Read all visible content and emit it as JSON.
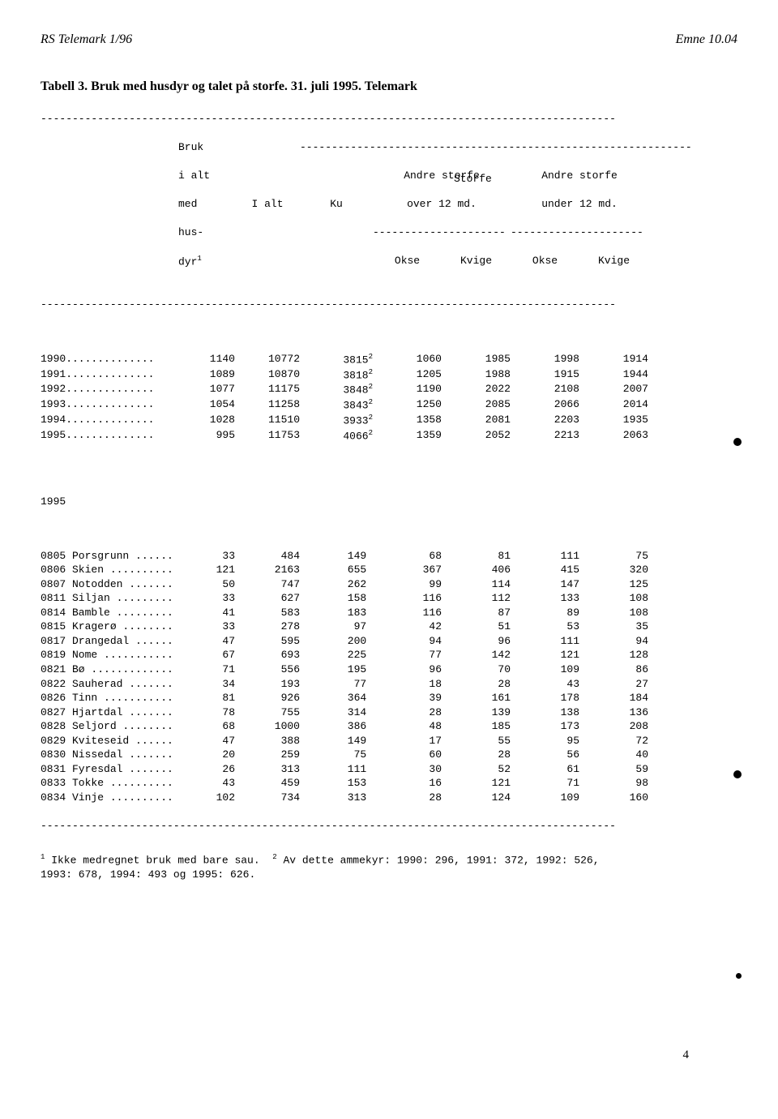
{
  "header": {
    "left": "RS Telemark 1/96",
    "right": "Emne 10.04"
  },
  "title": "Tabell 3. Bruk med husdyr og talet på storfe. 31. juli 1995. Telemark",
  "colhead": {
    "bruk": "Bruk\ni alt\nmed\nhus-\ndyr",
    "ialt": "I alt",
    "ku": "Ku",
    "storfe": "Storfe",
    "over": "Andre storfe\nover 12 md.",
    "under": "Andre storfe\nunder 12 md.",
    "okse": "Okse",
    "kvige": "Kvige",
    "sup1": "1"
  },
  "years": [
    {
      "label": "1990",
      "bruk": "1140",
      "ialt": "10772",
      "ku": "3815",
      "sup": "2",
      "okse1": "1060",
      "kvige1": "1985",
      "okse2": "1998",
      "kvige2": "1914"
    },
    {
      "label": "1991",
      "bruk": "1089",
      "ialt": "10870",
      "ku": "3818",
      "sup": "2",
      "okse1": "1205",
      "kvige1": "1988",
      "okse2": "1915",
      "kvige2": "1944"
    },
    {
      "label": "1992",
      "bruk": "1077",
      "ialt": "11175",
      "ku": "3848",
      "sup": "2",
      "okse1": "1190",
      "kvige1": "2022",
      "okse2": "2108",
      "kvige2": "2007"
    },
    {
      "label": "1993",
      "bruk": "1054",
      "ialt": "11258",
      "ku": "3843",
      "sup": "2",
      "okse1": "1250",
      "kvige1": "2085",
      "okse2": "2066",
      "kvige2": "2014"
    },
    {
      "label": "1994",
      "bruk": "1028",
      "ialt": "11510",
      "ku": "3933",
      "sup": "2",
      "okse1": "1358",
      "kvige1": "2081",
      "okse2": "2203",
      "kvige2": "1935"
    },
    {
      "label": "1995",
      "bruk": "995",
      "ialt": "11753",
      "ku": "4066",
      "sup": "2",
      "okse1": "1359",
      "kvige1": "2052",
      "okse2": "2213",
      "kvige2": "2063"
    }
  ],
  "section_year": "1995",
  "rows": [
    {
      "label": "0805 Porsgrunn",
      "bruk": "33",
      "ialt": "484",
      "ku": "149",
      "okse1": "68",
      "kvige1": "81",
      "okse2": "111",
      "kvige2": "75"
    },
    {
      "label": "0806 Skien",
      "bruk": "121",
      "ialt": "2163",
      "ku": "655",
      "okse1": "367",
      "kvige1": "406",
      "okse2": "415",
      "kvige2": "320"
    },
    {
      "label": "0807 Notodden",
      "bruk": "50",
      "ialt": "747",
      "ku": "262",
      "okse1": "99",
      "kvige1": "114",
      "okse2": "147",
      "kvige2": "125"
    },
    {
      "label": "0811 Siljan",
      "bruk": "33",
      "ialt": "627",
      "ku": "158",
      "okse1": "116",
      "kvige1": "112",
      "okse2": "133",
      "kvige2": "108"
    },
    {
      "label": "0814 Bamble",
      "bruk": "41",
      "ialt": "583",
      "ku": "183",
      "okse1": "116",
      "kvige1": "87",
      "okse2": "89",
      "kvige2": "108"
    },
    {
      "label": "0815 Kragerø",
      "bruk": "33",
      "ialt": "278",
      "ku": "97",
      "okse1": "42",
      "kvige1": "51",
      "okse2": "53",
      "kvige2": "35"
    },
    {
      "label": "0817 Drangedal",
      "bruk": "47",
      "ialt": "595",
      "ku": "200",
      "okse1": "94",
      "kvige1": "96",
      "okse2": "111",
      "kvige2": "94"
    },
    {
      "label": "0819 Nome",
      "bruk": "67",
      "ialt": "693",
      "ku": "225",
      "okse1": "77",
      "kvige1": "142",
      "okse2": "121",
      "kvige2": "128"
    },
    {
      "label": "0821 Bø",
      "bruk": "71",
      "ialt": "556",
      "ku": "195",
      "okse1": "96",
      "kvige1": "70",
      "okse2": "109",
      "kvige2": "86"
    },
    {
      "label": "0822 Sauherad",
      "bruk": "34",
      "ialt": "193",
      "ku": "77",
      "okse1": "18",
      "kvige1": "28",
      "okse2": "43",
      "kvige2": "27"
    },
    {
      "label": "0826 Tinn",
      "bruk": "81",
      "ialt": "926",
      "ku": "364",
      "okse1": "39",
      "kvige1": "161",
      "okse2": "178",
      "kvige2": "184"
    },
    {
      "label": "0827 Hjartdal",
      "bruk": "78",
      "ialt": "755",
      "ku": "314",
      "okse1": "28",
      "kvige1": "139",
      "okse2": "138",
      "kvige2": "136"
    },
    {
      "label": "0828 Seljord",
      "bruk": "68",
      "ialt": "1000",
      "ku": "386",
      "okse1": "48",
      "kvige1": "185",
      "okse2": "173",
      "kvige2": "208"
    },
    {
      "label": "0829 Kviteseid",
      "bruk": "47",
      "ialt": "388",
      "ku": "149",
      "okse1": "17",
      "kvige1": "55",
      "okse2": "95",
      "kvige2": "72"
    },
    {
      "label": "0830 Nissedal",
      "bruk": "20",
      "ialt": "259",
      "ku": "75",
      "okse1": "60",
      "kvige1": "28",
      "okse2": "56",
      "kvige2": "40"
    },
    {
      "label": "0831 Fyresdal",
      "bruk": "26",
      "ialt": "313",
      "ku": "111",
      "okse1": "30",
      "kvige1": "52",
      "okse2": "61",
      "kvige2": "59"
    },
    {
      "label": "0833 Tokke",
      "bruk": "43",
      "ialt": "459",
      "ku": "153",
      "okse1": "16",
      "kvige1": "121",
      "okse2": "71",
      "kvige2": "98"
    },
    {
      "label": "0834 Vinje",
      "bruk": "102",
      "ialt": "734",
      "ku": "313",
      "okse1": "28",
      "kvige1": "124",
      "okse2": "109",
      "kvige2": "160"
    }
  ],
  "foot1_pre": " Ikke medregnet bruk med bare sau.  ",
  "foot2_pre": " Av dette ammekyr: 1990: 296, 1991: 372, 1992: 526,",
  "foot_line2": "1993: 678, 1994: 493 og 1995: 626.",
  "page_num": "4",
  "sup1": "1",
  "sup2": "2"
}
